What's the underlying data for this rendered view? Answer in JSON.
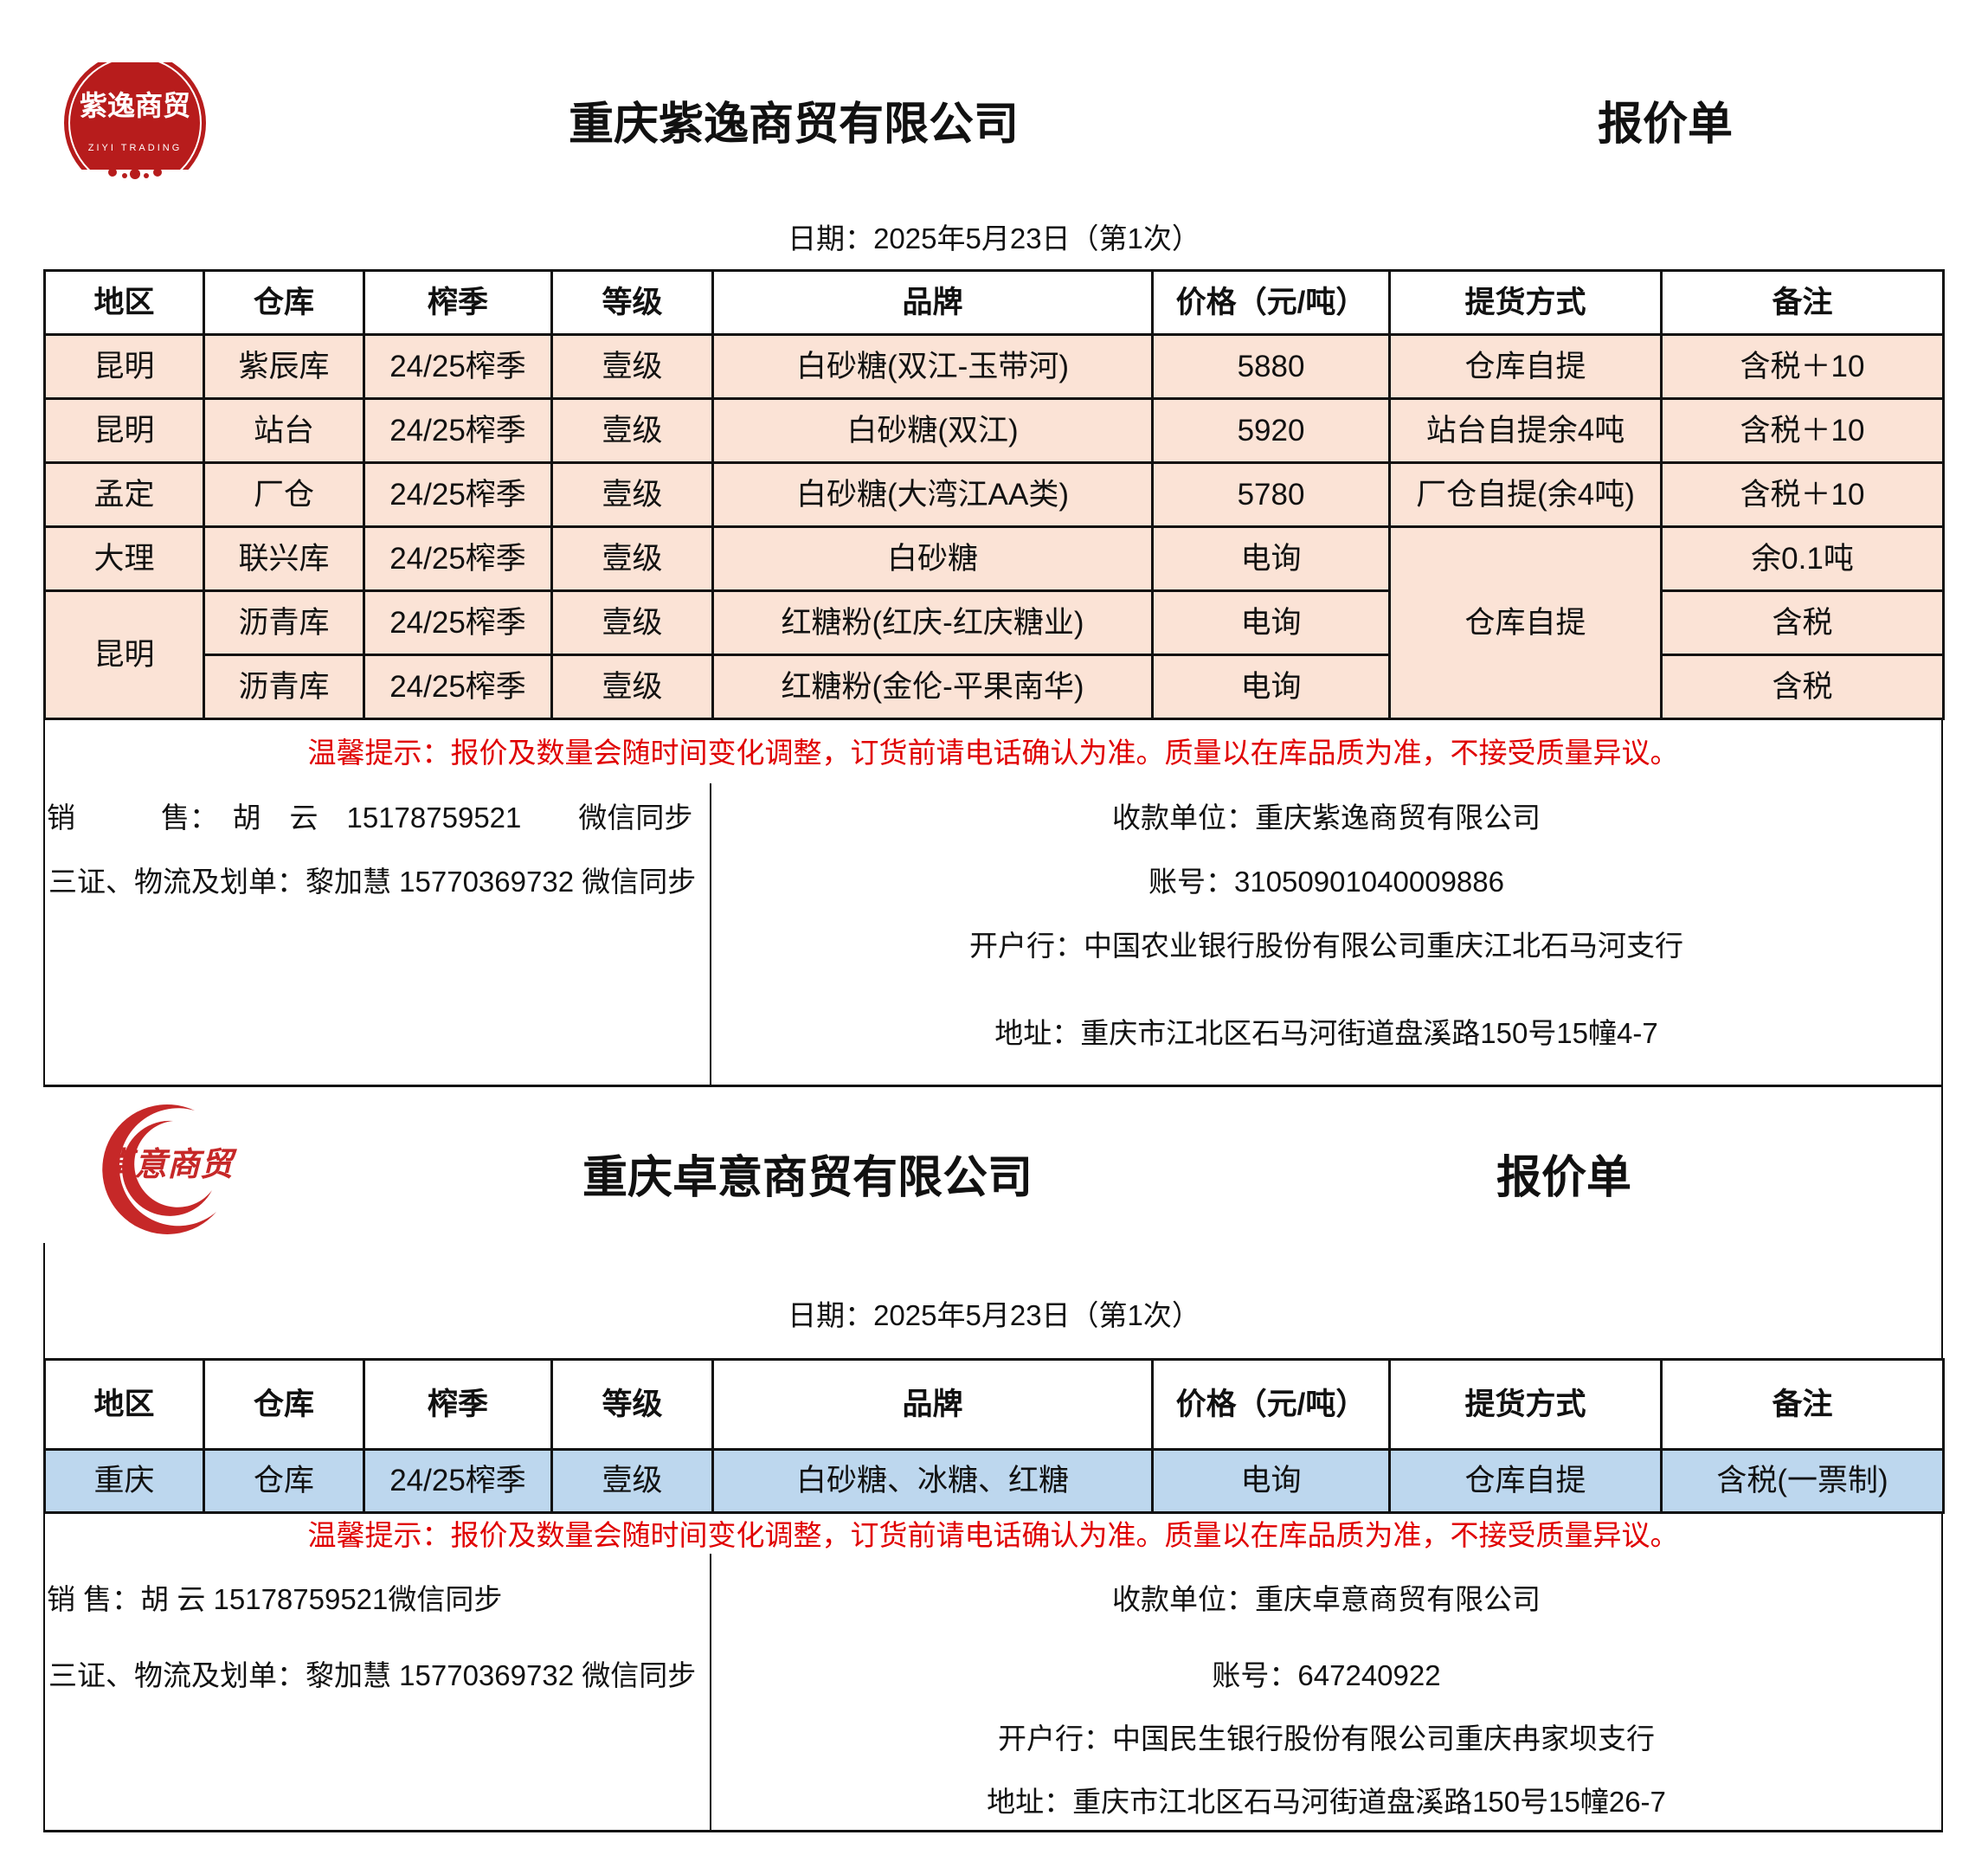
{
  "colors": {
    "row_bg_1": "#fbe3d6",
    "row_bg_2": "#bdd7ee",
    "warning": "#e00000",
    "logo": "#b71c1c"
  },
  "quote1": {
    "logo_text": "紫逸商贸",
    "logo_subtext": "ZIYI TRADING",
    "company": "重庆紫逸商贸有限公司",
    "doc_title": "报价单",
    "date": "日期：2025年5月23日（第1次）",
    "headers": [
      "地区",
      "仓库",
      "榨季",
      "等级",
      "品牌",
      "价格（元/吨）",
      "提货方式",
      "备注"
    ],
    "rows": [
      [
        "昆明",
        "紫辰库",
        "24/25榨季",
        "壹级",
        "白砂糖(双江-玉带河)",
        "5880",
        "仓库自提",
        "含税＋10"
      ],
      [
        "昆明",
        "站台",
        "24/25榨季",
        "壹级",
        "白砂糖(双江)",
        "5920",
        "站台自提余4吨",
        "含税＋10"
      ],
      [
        "孟定",
        "厂仓",
        "24/25榨季",
        "壹级",
        "白砂糖(大湾江AA类)",
        "5780",
        "厂仓自提(余4吨)",
        "含税＋10"
      ],
      [
        "大理",
        "联兴库",
        "24/25榨季",
        "壹级",
        "白砂糖",
        "电询",
        "仓库自提",
        "余0.1吨"
      ],
      [
        "昆明",
        "沥青库",
        "24/25榨季",
        "壹级",
        "红糖粉(红庆-红庆糖业)",
        "电询",
        "",
        "含税"
      ],
      [
        "",
        "沥青库",
        "24/25榨季",
        "壹级",
        "红糖粉(金伦-平果南华)",
        "电询",
        "",
        "含税"
      ]
    ],
    "warning": "温馨提示：报价及数量会随时间变化调整，订货前请电话确认为准。质量以在库品质为准，不接受质量异议。",
    "sales": "销　　　售：　胡　云　15178759521　　微信同步",
    "logistics": "三证、物流及划单：黎加慧 15770369732  微信同步",
    "payee": "收款单位：重庆紫逸商贸有限公司",
    "account": "账号：31050901040009886",
    "bank": "开户行：中国农业银行股份有限公司重庆江北石马河支行",
    "address": "地址：重庆市江北区石马河街道盘溪路150号15幢4-7"
  },
  "quote2": {
    "logo_text": "卓意商贸",
    "company": "重庆卓意商贸有限公司",
    "doc_title": "报价单",
    "date": "日期：2025年5月23日（第1次）",
    "headers": [
      "地区",
      "仓库",
      "榨季",
      "等级",
      "品牌",
      "价格（元/吨）",
      "提货方式",
      "备注"
    ],
    "rows": [
      [
        "重庆",
        "仓库",
        "24/25榨季",
        "壹级",
        "白砂糖、冰糖、红糖",
        "电询",
        "仓库自提",
        "含税(一票制)"
      ]
    ],
    "warning": "温馨提示：报价及数量会随时间变化调整，订货前请电话确认为准。质量以在库品质为准，不接受质量异议。",
    "sales": "销  售：胡  云 15178759521微信同步",
    "logistics": "三证、物流及划单：黎加慧 15770369732  微信同步",
    "payee": "收款单位：重庆卓意商贸有限公司",
    "account": "账号：647240922",
    "bank": "开户行：中国民生银行股份有限公司重庆冉家坝支行",
    "address": "地址：重庆市江北区石马河街道盘溪路150号15幢26-7"
  }
}
